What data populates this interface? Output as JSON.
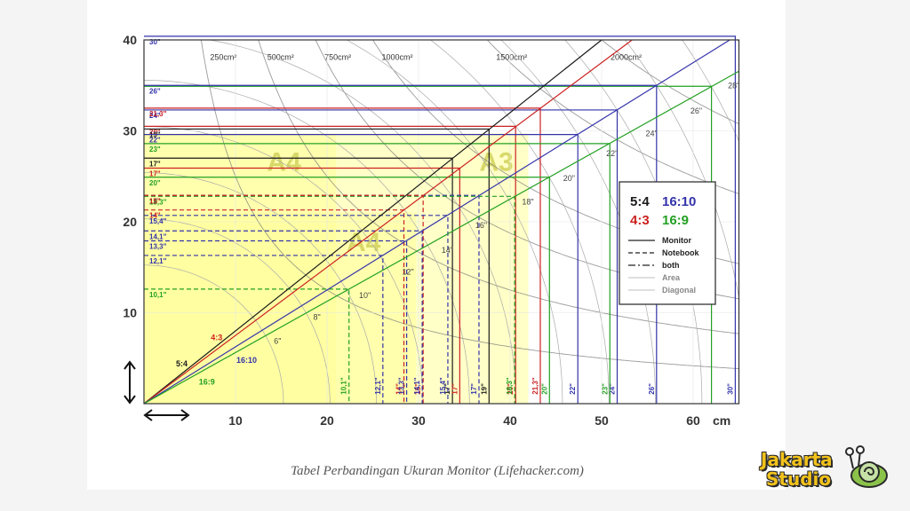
{
  "caption": "Tabel Perbandingan Ukuran Monitor (Lifehacker.com)",
  "brand": {
    "line1": "Jakarta",
    "line2": "Studio",
    "icon": "snail-mascot-icon"
  },
  "colors": {
    "r54": "#1a1a1a",
    "r43": "#cc2222",
    "r1610": "#3333aa",
    "r169": "#22a022",
    "area_curve": "#7a7a7a",
    "paper_fill": "#ffff99",
    "paper_fill_dark": "#f0f07a"
  },
  "chart_data": {
    "type": "line",
    "x_unit": "cm",
    "y_unit": "cm",
    "xlim": [
      0,
      65
    ],
    "ylim": [
      0,
      40
    ],
    "x_ticks": [
      "10",
      "20",
      "30",
      "40",
      "50",
      "60"
    ],
    "y_ticks": [
      "10",
      "20",
      "30",
      "40"
    ],
    "x_unit_label": "cm",
    "legend": {
      "placement": "right",
      "ratios": [
        {
          "label": "5:4",
          "color": "#1a1a1a"
        },
        {
          "label": "16:10",
          "color": "#3333aa"
        },
        {
          "label": "4:3",
          "color": "#cc2222"
        },
        {
          "label": "16:9",
          "color": "#22a022"
        }
      ],
      "styles": [
        {
          "label": "Monitor",
          "dash": "solid"
        },
        {
          "label": "Notebook",
          "dash": "dashed"
        },
        {
          "label": "both",
          "dash": "dashdot"
        },
        {
          "label": "Area",
          "dash": "faint"
        },
        {
          "label": "Diagonal",
          "dash": "faint"
        }
      ]
    },
    "ratio_lines": [
      {
        "name": "5:4",
        "slope": 0.8,
        "color": "#1a1a1a"
      },
      {
        "name": "4:3",
        "slope": 0.75,
        "color": "#cc2222"
      },
      {
        "name": "16:10",
        "slope": 0.625,
        "color": "#3333aa"
      },
      {
        "name": "16:9",
        "slope": 0.5625,
        "color": "#22a022"
      }
    ],
    "paper_sizes": [
      {
        "name": "A4",
        "w": 21.0,
        "h": 29.7
      },
      {
        "name": "A3",
        "w": 42.0,
        "h": 29.7
      },
      {
        "name": "A4",
        "w": 29.7,
        "h": 21.0
      }
    ],
    "area_curves": [
      {
        "label": "250cm²",
        "area": 250
      },
      {
        "label": "500cm²",
        "area": 500
      },
      {
        "label": "750cm²",
        "area": 750
      },
      {
        "label": "1000cm²",
        "area": 1000
      },
      {
        "label": "1500cm²",
        "area": 1500
      },
      {
        "label": "2000cm²",
        "area": 2000
      }
    ],
    "screens": [
      {
        "diag": "30\"",
        "ratio": "16:10",
        "w": 64.6,
        "h": 40.4,
        "style": "solid",
        "left_label": true,
        "bottom_label": true
      },
      {
        "diag": "28\"",
        "ratio": "16:9",
        "w": 62.0,
        "h": 34.9,
        "style": "solid",
        "left_label": false,
        "bottom_label": false
      },
      {
        "diag": "26\"",
        "ratio": "16:10",
        "w": 56.0,
        "h": 35.0,
        "style": "solid",
        "left_label": true,
        "bottom_label": true
      },
      {
        "diag": "24\"",
        "ratio": "16:10",
        "w": 51.7,
        "h": 32.3,
        "style": "solid",
        "left_label": true,
        "bottom_label": true
      },
      {
        "diag": "21,3\"",
        "ratio": "4:3",
        "w": 43.3,
        "h": 32.5,
        "style": "solid",
        "left_label": true,
        "bottom_label": true
      },
      {
        "diag": "20\"",
        "ratio": "4:3",
        "w": 40.6,
        "h": 30.5,
        "style": "solid",
        "left_label": true,
        "bottom_label": true
      },
      {
        "diag": "19\"",
        "ratio": "5:4",
        "w": 37.7,
        "h": 30.2,
        "style": "solid",
        "left_label": true,
        "bottom_label": true
      },
      {
        "diag": "22\"",
        "ratio": "16:10",
        "w": 47.4,
        "h": 29.6,
        "style": "solid",
        "left_label": true,
        "bottom_label": true
      },
      {
        "diag": "23\"",
        "ratio": "16:9",
        "w": 50.9,
        "h": 28.6,
        "style": "solid",
        "left_label": true,
        "bottom_label": true
      },
      {
        "diag": "17\"",
        "ratio": "5:4",
        "w": 33.7,
        "h": 27.0,
        "style": "solid",
        "left_label": true,
        "bottom_label": true
      },
      {
        "diag": "17\"",
        "ratio": "4:3",
        "w": 34.5,
        "h": 25.9,
        "style": "solid",
        "left_label": true,
        "bottom_label": true
      },
      {
        "diag": "20\"",
        "ratio": "16:9",
        "w": 44.3,
        "h": 24.9,
        "style": "solid",
        "left_label": true,
        "bottom_label": true
      },
      {
        "diag": "17\"",
        "ratio": "16:10",
        "w": 36.6,
        "h": 22.9,
        "style": "dashed",
        "left_label": true,
        "bottom_label": true
      },
      {
        "diag": "18,3\"",
        "ratio": "16:9",
        "w": 40.5,
        "h": 22.8,
        "style": "dashed",
        "left_label": true,
        "bottom_label": true
      },
      {
        "diag": "15\"",
        "ratio": "4:3",
        "w": 30.5,
        "h": 22.9,
        "style": "dashed",
        "left_label": true,
        "bottom_label": true
      },
      {
        "diag": "14\"",
        "ratio": "4:3",
        "w": 28.4,
        "h": 21.3,
        "style": "dashed",
        "left_label": true,
        "bottom_label": true
      },
      {
        "diag": "15,4\"",
        "ratio": "16:10",
        "w": 33.2,
        "h": 20.7,
        "style": "dashed",
        "left_label": true,
        "bottom_label": true
      },
      {
        "diag": "14,1\"",
        "ratio": "16:10",
        "w": 30.4,
        "h": 19.0,
        "style": "dashed",
        "left_label": true,
        "bottom_label": true
      },
      {
        "diag": "13,3\"",
        "ratio": "16:10",
        "w": 28.7,
        "h": 17.9,
        "style": "dashed",
        "left_label": true,
        "bottom_label": true
      },
      {
        "diag": "12,1\"",
        "ratio": "16:10",
        "w": 26.1,
        "h": 16.3,
        "style": "dashed",
        "left_label": true,
        "bottom_label": true
      },
      {
        "diag": "10,1\"",
        "ratio": "16:9",
        "w": 22.4,
        "h": 12.6,
        "style": "dashed",
        "left_label": true,
        "bottom_label": true
      }
    ],
    "diagonal_labels": [
      {
        "text": "8\"",
        "x": 18.5,
        "y": 9.2,
        "color": "#444"
      },
      {
        "text": "6\"",
        "x": 14.2,
        "y": 6.6,
        "color": "#444"
      },
      {
        "text": "10\"",
        "x": 23.5,
        "y": 11.6,
        "color": "#444"
      },
      {
        "text": "12\"",
        "x": 28.2,
        "y": 14.2,
        "color": "#444"
      },
      {
        "text": "14\"",
        "x": 32.5,
        "y": 16.6,
        "color": "#444"
      },
      {
        "text": "16\"",
        "x": 36.2,
        "y": 19.3,
        "color": "#444"
      },
      {
        "text": "18\"",
        "x": 41.3,
        "y": 21.9,
        "color": "#444"
      },
      {
        "text": "20\"",
        "x": 45.8,
        "y": 24.5,
        "color": "#444"
      },
      {
        "text": "22\"",
        "x": 50.5,
        "y": 27.2,
        "color": "#444"
      },
      {
        "text": "24\"",
        "x": 54.8,
        "y": 29.4,
        "color": "#444"
      },
      {
        "text": "26\"",
        "x": 59.7,
        "y": 31.9,
        "color": "#444"
      },
      {
        "text": "28\"",
        "x": 63.8,
        "y": 34.7,
        "color": "#444"
      }
    ],
    "ratio_labels": [
      {
        "text": "5:4",
        "x": 3.5,
        "y": 4.1,
        "color": "#1a1a1a"
      },
      {
        "text": "4:3",
        "x": 7.3,
        "y": 7.0,
        "color": "#cc2222"
      },
      {
        "text": "16:10",
        "x": 10.1,
        "y": 4.5,
        "color": "#3333aa"
      },
      {
        "text": "16:9",
        "x": 6.0,
        "y": 2.1,
        "color": "#22a022"
      }
    ]
  }
}
